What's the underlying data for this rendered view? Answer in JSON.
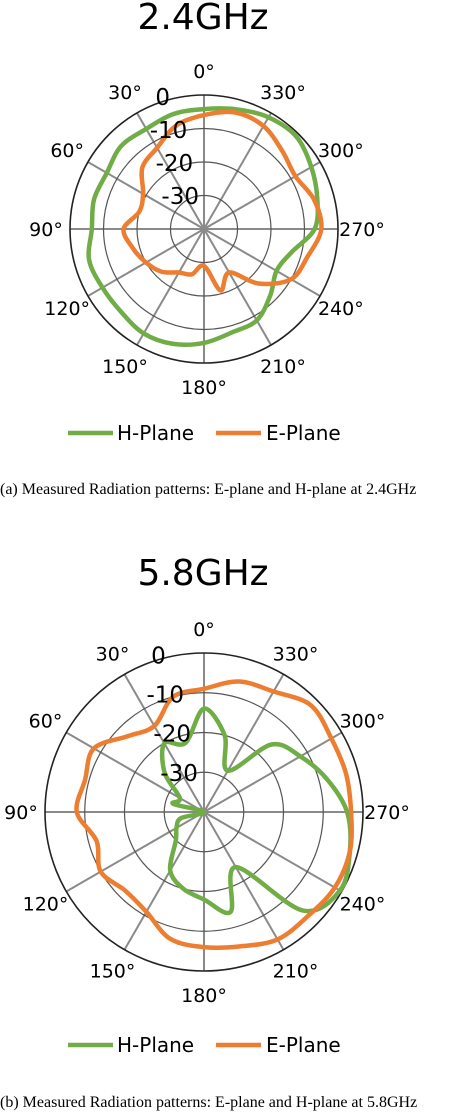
{
  "chart_data": [
    {
      "type": "polar-line",
      "title": "2.4GHz",
      "caption": "(a) Measured Radiation patterns: E-plane and H-plane at 2.4GHz",
      "r_ticks": [
        "0",
        "-10",
        "-20",
        "-30"
      ],
      "rlim": [
        -40,
        0
      ],
      "angle_ticks": [
        "0°",
        "30°",
        "60°",
        "90°",
        "120°",
        "150°",
        "180°",
        "210°",
        "240°",
        "270°",
        "300°",
        "330°"
      ],
      "angle_direction": "counterclockwise",
      "zero_location": "top",
      "legend_position": "bottom",
      "colors": {
        "H-Plane": "#70AD47",
        "E-Plane": "#ED7D31"
      },
      "theta": [
        0,
        15,
        30,
        45,
        60,
        75,
        90,
        105,
        120,
        135,
        150,
        165,
        180,
        195,
        210,
        225,
        240,
        255,
        270,
        285,
        300,
        315,
        330,
        345,
        360
      ],
      "series": [
        {
          "name": "H-Plane",
          "values": [
            -4.2,
            -4.5,
            -5.5,
            -5.0,
            -6.5,
            -6.0,
            -6.5,
            -4.5,
            -5.0,
            -5.0,
            -4.0,
            -4.5,
            -6.0,
            -8.0,
            -8.5,
            -12.0,
            -15.0,
            -13.0,
            -7.0,
            -5.0,
            -3.0,
            -1.0,
            -1.5,
            -3.0,
            -4.2
          ]
        },
        {
          "name": "E-Plane",
          "values": [
            -6.0,
            -8.0,
            -12.0,
            -14.0,
            -19.0,
            -20.0,
            -16.0,
            -18.0,
            -20.0,
            -22.0,
            -25.0,
            -26.0,
            -29.0,
            -21.0,
            -25.0,
            -17.0,
            -10.0,
            -8.0,
            -5.0,
            -6.0,
            -8.5,
            -7.0,
            -4.5,
            -4.0,
            -6.0
          ]
        }
      ]
    },
    {
      "type": "polar-line",
      "title": "5.8GHz",
      "caption": "(b) Measured Radiation patterns: E-plane and H-plane at 5.8GHz",
      "r_ticks": [
        "0",
        "-10",
        "-20",
        "-30"
      ],
      "rlim": [
        -40,
        0
      ],
      "angle_ticks": [
        "0°",
        "30°",
        "60°",
        "90°",
        "120°",
        "150°",
        "180°",
        "210°",
        "240°",
        "270°",
        "300°",
        "330°"
      ],
      "angle_direction": "counterclockwise",
      "zero_location": "top",
      "legend_position": "bottom",
      "colors": {
        "H-Plane": "#70AD47",
        "E-Plane": "#ED7D31"
      },
      "theta": [
        0,
        15,
        30,
        45,
        60,
        75,
        90,
        105,
        120,
        135,
        150,
        165,
        180,
        195,
        210,
        225,
        240,
        255,
        270,
        285,
        300,
        315,
        330,
        345,
        360
      ],
      "series": [
        {
          "name": "H-Plane",
          "values": [
            -14.0,
            -22.0,
            -20.0,
            -26.0,
            -33.0,
            -32.0,
            -40.0,
            -34.0,
            -32.0,
            -30.0,
            -23.0,
            -20.0,
            -18.0,
            -14.0,
            -24.0,
            -5.0,
            -0.5,
            -2.0,
            -4.0,
            -8.0,
            -12.0,
            -16.0,
            -28.0,
            -20.0,
            -14.0
          ]
        },
        {
          "name": "E-Plane",
          "values": [
            -9.0,
            -10.0,
            -15.0,
            -13.0,
            -8.0,
            -9.0,
            -8.0,
            -12.0,
            -10.0,
            -12.0,
            -11.0,
            -7.0,
            -6.0,
            -5.0,
            -3.0,
            -3.0,
            -2.0,
            -2.0,
            -3.0,
            -3.0,
            -3.0,
            -2.0,
            -5.0,
            -6.0,
            -9.0
          ]
        }
      ]
    }
  ],
  "legend_items": [
    "H-Plane",
    "E-Plane"
  ]
}
